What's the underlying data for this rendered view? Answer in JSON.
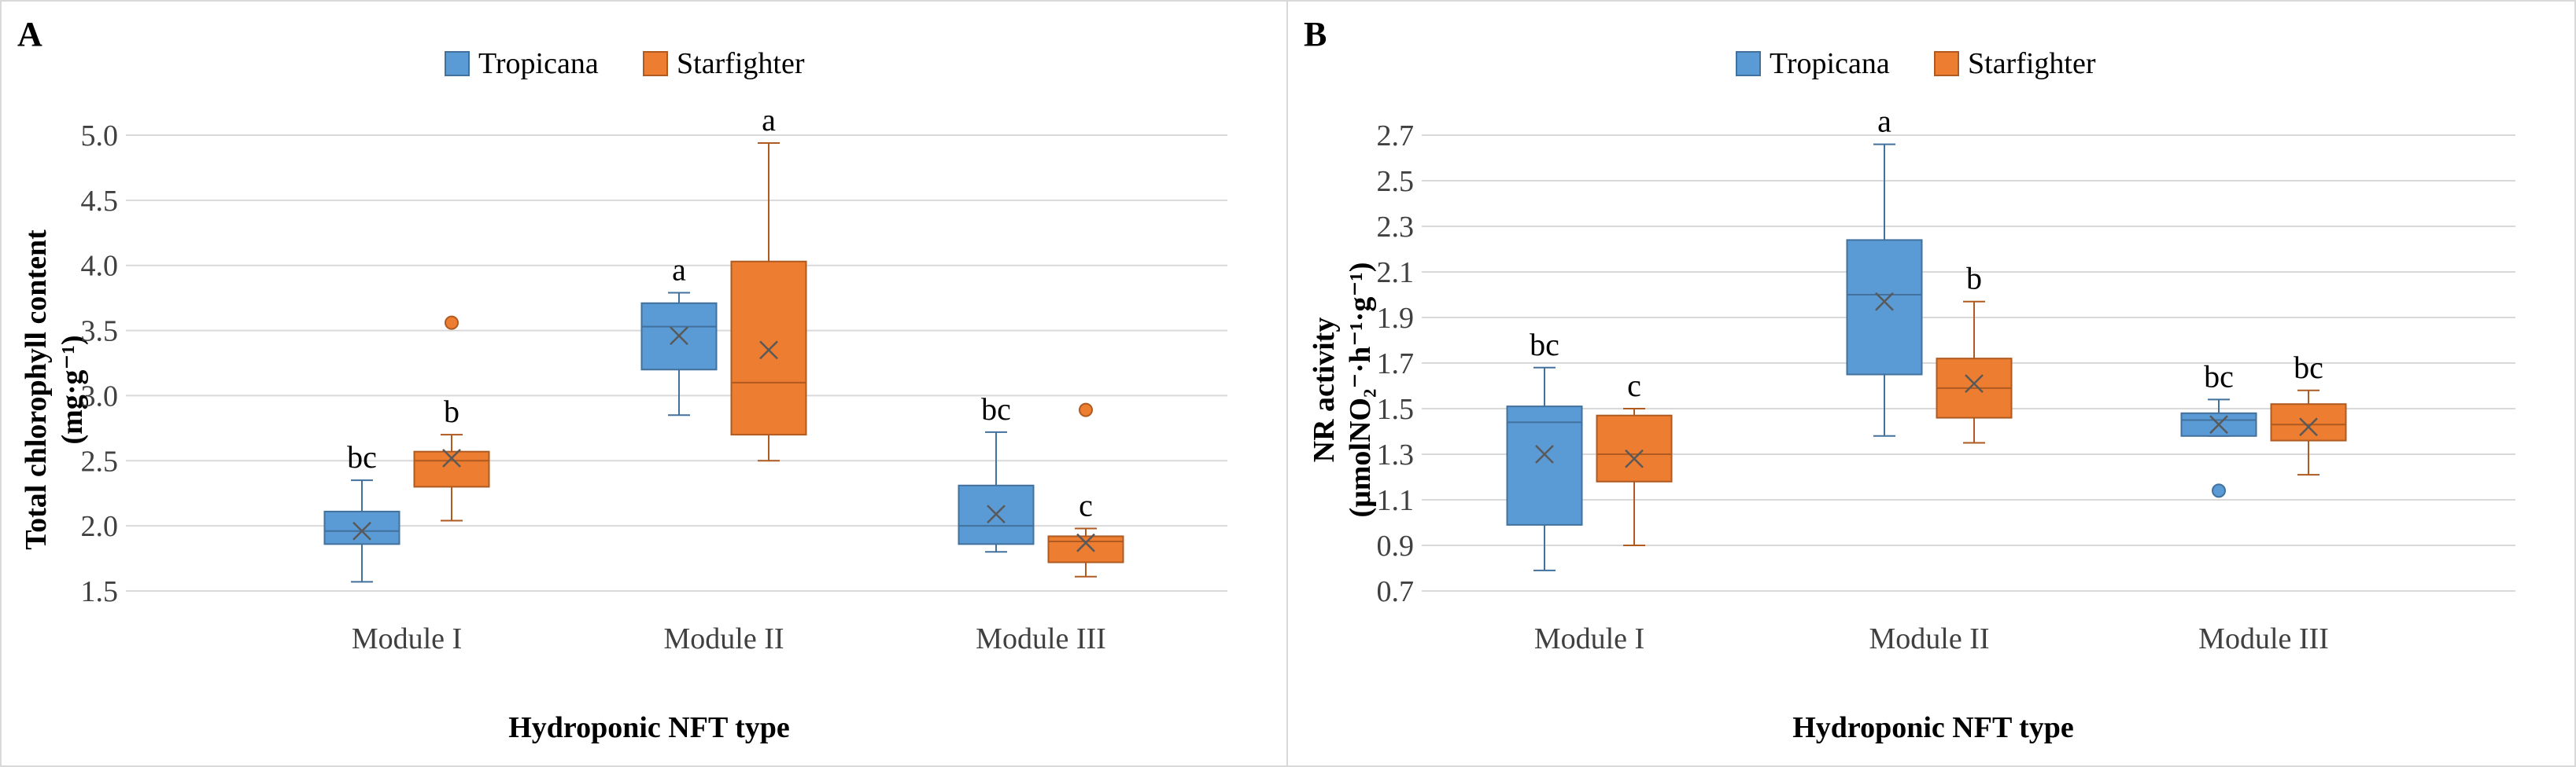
{
  "chart_data": [
    {
      "type": "boxplot",
      "panel_label": "A",
      "ylabel": "Total chlorophyll content",
      "yunit": "(mg·g⁻¹)",
      "xlabel": "Hydroponic NFT type",
      "ylim": [
        1.5,
        5.0
      ],
      "yticks": [
        1.5,
        2.0,
        2.5,
        3.0,
        3.5,
        4.0,
        4.5,
        5.0
      ],
      "ytick_labels": [
        "1.5",
        "2.0",
        "2.5",
        "3.0",
        "3.5",
        "4.0",
        "4.5",
        "5.0"
      ],
      "categories": [
        "Module I",
        "Module II",
        "Module III"
      ],
      "legend": [
        "Tropicana",
        "Starfighter"
      ],
      "series": [
        {
          "name": "Tropicana",
          "color": "#5b9bd5",
          "stroke": "#41719c",
          "boxes": [
            {
              "min": 1.57,
              "q1": 1.86,
              "median": 1.96,
              "q3": 2.11,
              "max": 2.35,
              "mean": 1.96,
              "outliers": [],
              "letter": "bc"
            },
            {
              "min": 2.85,
              "q1": 3.2,
              "median": 3.53,
              "q3": 3.71,
              "max": 3.79,
              "mean": 3.46,
              "outliers": [],
              "letter": "a"
            },
            {
              "min": 1.8,
              "q1": 1.86,
              "median": 2.0,
              "q3": 2.31,
              "max": 2.72,
              "mean": 2.09,
              "outliers": [],
              "letter": "bc"
            }
          ]
        },
        {
          "name": "Starfighter",
          "color": "#ed7d31",
          "stroke": "#ae5a21",
          "boxes": [
            {
              "min": 2.04,
              "q1": 2.3,
              "median": 2.5,
              "q3": 2.57,
              "max": 2.7,
              "mean": 2.52,
              "outliers": [
                3.56
              ],
              "letter": "b"
            },
            {
              "min": 2.5,
              "q1": 2.7,
              "median": 3.1,
              "q3": 4.03,
              "max": 4.94,
              "mean": 3.35,
              "outliers": [],
              "letter": "a"
            },
            {
              "min": 1.61,
              "q1": 1.72,
              "median": 1.88,
              "q3": 1.92,
              "max": 1.98,
              "mean": 1.87,
              "outliers": [
                2.89
              ],
              "letter": "c"
            }
          ]
        }
      ]
    },
    {
      "type": "boxplot",
      "panel_label": "B",
      "ylabel": "NR activity",
      "yunit": "(μmolNO₂⁻·h⁻¹·g⁻¹)",
      "xlabel": "Hydroponic NFT type",
      "ylim": [
        0.7,
        2.7
      ],
      "yticks": [
        0.7,
        0.9,
        1.1,
        1.3,
        1.5,
        1.7,
        1.9,
        2.1,
        2.3,
        2.5,
        2.7
      ],
      "ytick_labels": [
        "0.7",
        "0.9",
        "1.1",
        "1.3",
        "1.5",
        "1.7",
        "1.9",
        "2.1",
        "2.3",
        "2.5",
        "2.7"
      ],
      "categories": [
        "Module I",
        "Module II",
        "Module III"
      ],
      "legend": [
        "Tropicana",
        "Starfighter"
      ],
      "series": [
        {
          "name": "Tropicana",
          "color": "#5b9bd5",
          "stroke": "#41719c",
          "boxes": [
            {
              "min": 0.79,
              "q1": 0.99,
              "median": 1.44,
              "q3": 1.51,
              "max": 1.68,
              "mean": 1.3,
              "outliers": [],
              "letter": "bc"
            },
            {
              "min": 1.38,
              "q1": 1.65,
              "median": 2.0,
              "q3": 2.24,
              "max": 2.66,
              "mean": 1.97,
              "outliers": [],
              "letter": "a"
            },
            {
              "min": 1.38,
              "q1": 1.38,
              "median": 1.45,
              "q3": 1.48,
              "max": 1.54,
              "mean": 1.43,
              "outliers": [
                1.14
              ],
              "letter": "bc"
            }
          ]
        },
        {
          "name": "Starfighter",
          "color": "#ed7d31",
          "stroke": "#ae5a21",
          "boxes": [
            {
              "min": 0.9,
              "q1": 1.18,
              "median": 1.3,
              "q3": 1.47,
              "max": 1.5,
              "mean": 1.28,
              "outliers": [],
              "letter": "c"
            },
            {
              "min": 1.35,
              "q1": 1.46,
              "median": 1.59,
              "q3": 1.72,
              "max": 1.97,
              "mean": 1.61,
              "outliers": [],
              "letter": "b"
            },
            {
              "min": 1.21,
              "q1": 1.36,
              "median": 1.43,
              "q3": 1.52,
              "max": 1.58,
              "mean": 1.42,
              "outliers": [],
              "letter": "bc"
            }
          ]
        }
      ]
    }
  ]
}
